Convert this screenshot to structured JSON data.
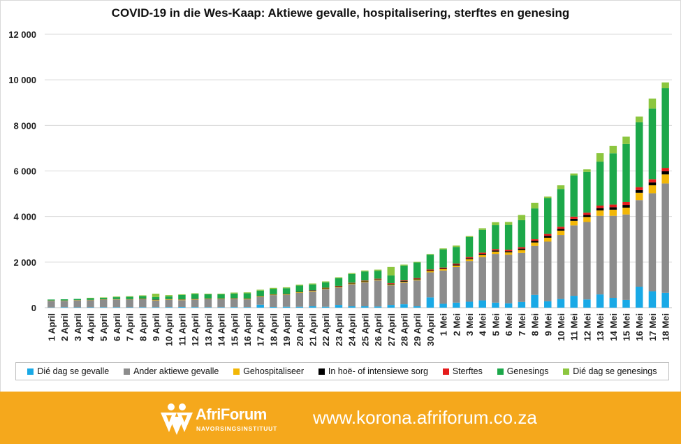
{
  "title": "COVID-19 in die Wes-Kaap: Aktiewe gevalle, hospitalisering, sterftes en genesing",
  "footer": {
    "logo_name": "AfriForum",
    "logo_subtitle": "NAVORSINGSINSTITUUT",
    "website": "www.korona.afriforum.co.za",
    "background_color": "#f5a81c"
  },
  "chart_data": {
    "type": "bar",
    "stacked": true,
    "title": "COVID-19 in die Wes-Kaap: Aktiewe gevalle, hospitalisering, sterftes en genesing",
    "xlabel": "",
    "ylabel": "",
    "ylim": [
      0,
      12000
    ],
    "yticks": [
      0,
      2000,
      4000,
      6000,
      8000,
      10000,
      12000
    ],
    "ytick_labels": [
      "0",
      "2 000",
      "4 000",
      "6 000",
      "8 000",
      "10 000",
      "12 000"
    ],
    "grid": true,
    "legend_position": "bottom",
    "categories": [
      "1 April",
      "2 April",
      "3 April",
      "4 April",
      "5 April",
      "6 April",
      "7 April",
      "8 April",
      "9 April",
      "10 April",
      "11 April",
      "12 April",
      "13 April",
      "14 April",
      "15 April",
      "16 April",
      "17 April",
      "18 April",
      "19 April",
      "20 April",
      "21 April",
      "22 April",
      "23 April",
      "24 April",
      "25 April",
      "26 April",
      "27 April",
      "28 April",
      "29 April",
      "30 April",
      "1 Mei",
      "2 Mei",
      "3 Mei",
      "4 Mei",
      "5 Mei",
      "6 Mei",
      "7 Mei",
      "8 Mei",
      "9 Mei",
      "10 Mei",
      "11 Mei",
      "12 Mei",
      "13 Mei",
      "14 Mei",
      "15 Mei",
      "16 Mei",
      "17 Mei",
      "18 Mei"
    ],
    "series": [
      {
        "name": "Dié dag se gevalle",
        "color": "#19a9e6",
        "values": [
          10,
          20,
          15,
          15,
          20,
          20,
          15,
          20,
          20,
          25,
          30,
          25,
          20,
          20,
          25,
          25,
          130,
          30,
          40,
          40,
          60,
          40,
          120,
          60,
          60,
          50,
          120,
          150,
          60,
          450,
          170,
          220,
          260,
          320,
          220,
          190,
          250,
          560,
          280,
          380,
          520,
          360,
          580,
          430,
          340,
          920,
          720,
          650
        ]
      },
      {
        "name": "Ander aktiewe gevalle",
        "color": "#8c8c8c",
        "values": [
          290,
          280,
          300,
          310,
          330,
          340,
          340,
          350,
          300,
          320,
          300,
          330,
          350,
          350,
          360,
          340,
          340,
          520,
          520,
          610,
          650,
          780,
          770,
          970,
          1060,
          1150,
          860,
          950,
          1140,
          1100,
          1460,
          1560,
          1790,
          1900,
          2140,
          2130,
          2150,
          2150,
          2620,
          2810,
          3090,
          3400,
          3450,
          3600,
          3750,
          3800,
          4300,
          4800
        ]
      },
      {
        "name": "Gehospitaliseer",
        "color": "#f2b707",
        "values": [
          10,
          10,
          10,
          10,
          10,
          10,
          10,
          15,
          20,
          20,
          20,
          20,
          20,
          20,
          20,
          20,
          20,
          20,
          20,
          25,
          25,
          25,
          30,
          30,
          30,
          30,
          40,
          40,
          40,
          60,
          60,
          70,
          80,
          90,
          100,
          110,
          130,
          150,
          170,
          190,
          200,
          220,
          240,
          270,
          300,
          320,
          350,
          400
        ]
      },
      {
        "name": "In hoë- of intensiewe sorg",
        "color": "#000000",
        "values": [
          5,
          5,
          5,
          5,
          5,
          5,
          5,
          10,
          10,
          10,
          10,
          10,
          10,
          10,
          10,
          10,
          10,
          10,
          15,
          15,
          15,
          15,
          20,
          20,
          20,
          20,
          30,
          30,
          30,
          30,
          30,
          40,
          40,
          50,
          50,
          50,
          60,
          70,
          80,
          80,
          90,
          90,
          100,
          110,
          120,
          120,
          130,
          140
        ]
      },
      {
        "name": "Sterftes",
        "color": "#e51c1c",
        "values": [
          2,
          2,
          3,
          3,
          3,
          3,
          3,
          4,
          4,
          4,
          5,
          5,
          5,
          6,
          6,
          6,
          7,
          7,
          8,
          8,
          10,
          12,
          14,
          16,
          20,
          20,
          25,
          28,
          30,
          35,
          40,
          45,
          50,
          55,
          60,
          62,
          68,
          75,
          85,
          90,
          95,
          100,
          110,
          115,
          125,
          130,
          138,
          145
        ]
      },
      {
        "name": "Genesings",
        "color": "#1ca84a",
        "values": [
          40,
          50,
          50,
          70,
          60,
          80,
          100,
          110,
          110,
          120,
          190,
          210,
          180,
          180,
          200,
          230,
          240,
          240,
          250,
          270,
          260,
          240,
          340,
          380,
          400,
          350,
          340,
          650,
          680,
          650,
          800,
          730,
          880,
          1000,
          1050,
          1090,
          1180,
          1350,
          1580,
          1660,
          1810,
          1790,
          1930,
          2250,
          2550,
          2850,
          3100,
          3500
        ]
      },
      {
        "name": "Dié dag se genesings",
        "color": "#8cc63f",
        "values": [
          0,
          0,
          0,
          20,
          20,
          30,
          30,
          30,
          150,
          50,
          30,
          30,
          30,
          30,
          40,
          40,
          40,
          40,
          40,
          40,
          40,
          40,
          40,
          40,
          40,
          50,
          370,
          40,
          30,
          30,
          40,
          60,
          40,
          70,
          130,
          130,
          230,
          250,
          60,
          160,
          80,
          110,
          370,
          320,
          320,
          250,
          440,
          250
        ]
      }
    ]
  }
}
